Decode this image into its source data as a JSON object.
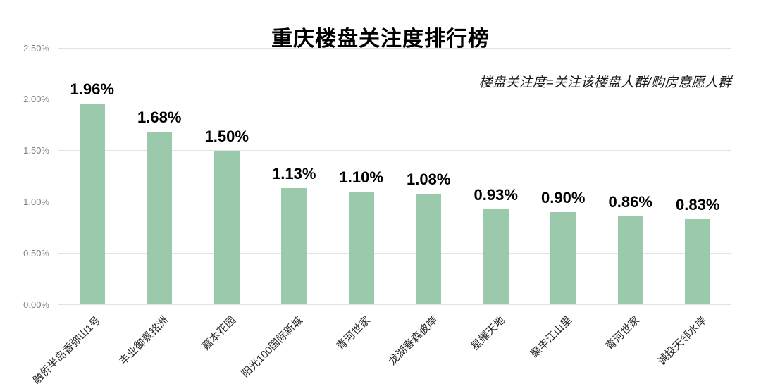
{
  "title": "重庆楼盘关注度排行榜",
  "annotation": "楼盘关注度=关注该楼盘人群/购房意愿人群",
  "chart_data": {
    "type": "bar",
    "title": "重庆楼盘关注度排行榜",
    "subtitle": "楼盘关注度=关注该楼盘人群/购房意愿人群",
    "categories": [
      "融侨半岛香弥山1号",
      "丰业御景铭洲",
      "嘉本花园",
      "阳光100国际新城",
      "青河世家",
      "龙湖春森彼岸",
      "星耀天地",
      "聚丰江山里",
      "青河世家",
      "诚投天邻水岸"
    ],
    "values": [
      1.96,
      1.68,
      1.5,
      1.13,
      1.1,
      1.08,
      0.93,
      0.9,
      0.86,
      0.83
    ],
    "value_labels": [
      "1.96%",
      "1.68%",
      "1.50%",
      "1.13%",
      "1.10%",
      "1.08%",
      "0.93%",
      "0.90%",
      "0.86%",
      "0.83%"
    ],
    "xlabel": "",
    "ylabel": "",
    "ylim": [
      0,
      2.5
    ],
    "ytick_labels": [
      "0.00%",
      "0.50%",
      "1.00%",
      "1.50%",
      "2.00%",
      "2.50%"
    ],
    "grid": true,
    "legend": false
  },
  "colors": {
    "bar": "#9acaab",
    "grid": "#e3e3e3",
    "ytick_text": "#808080",
    "xtick_text": "#262626",
    "title_text": "#000000",
    "background": "#ffffff"
  }
}
